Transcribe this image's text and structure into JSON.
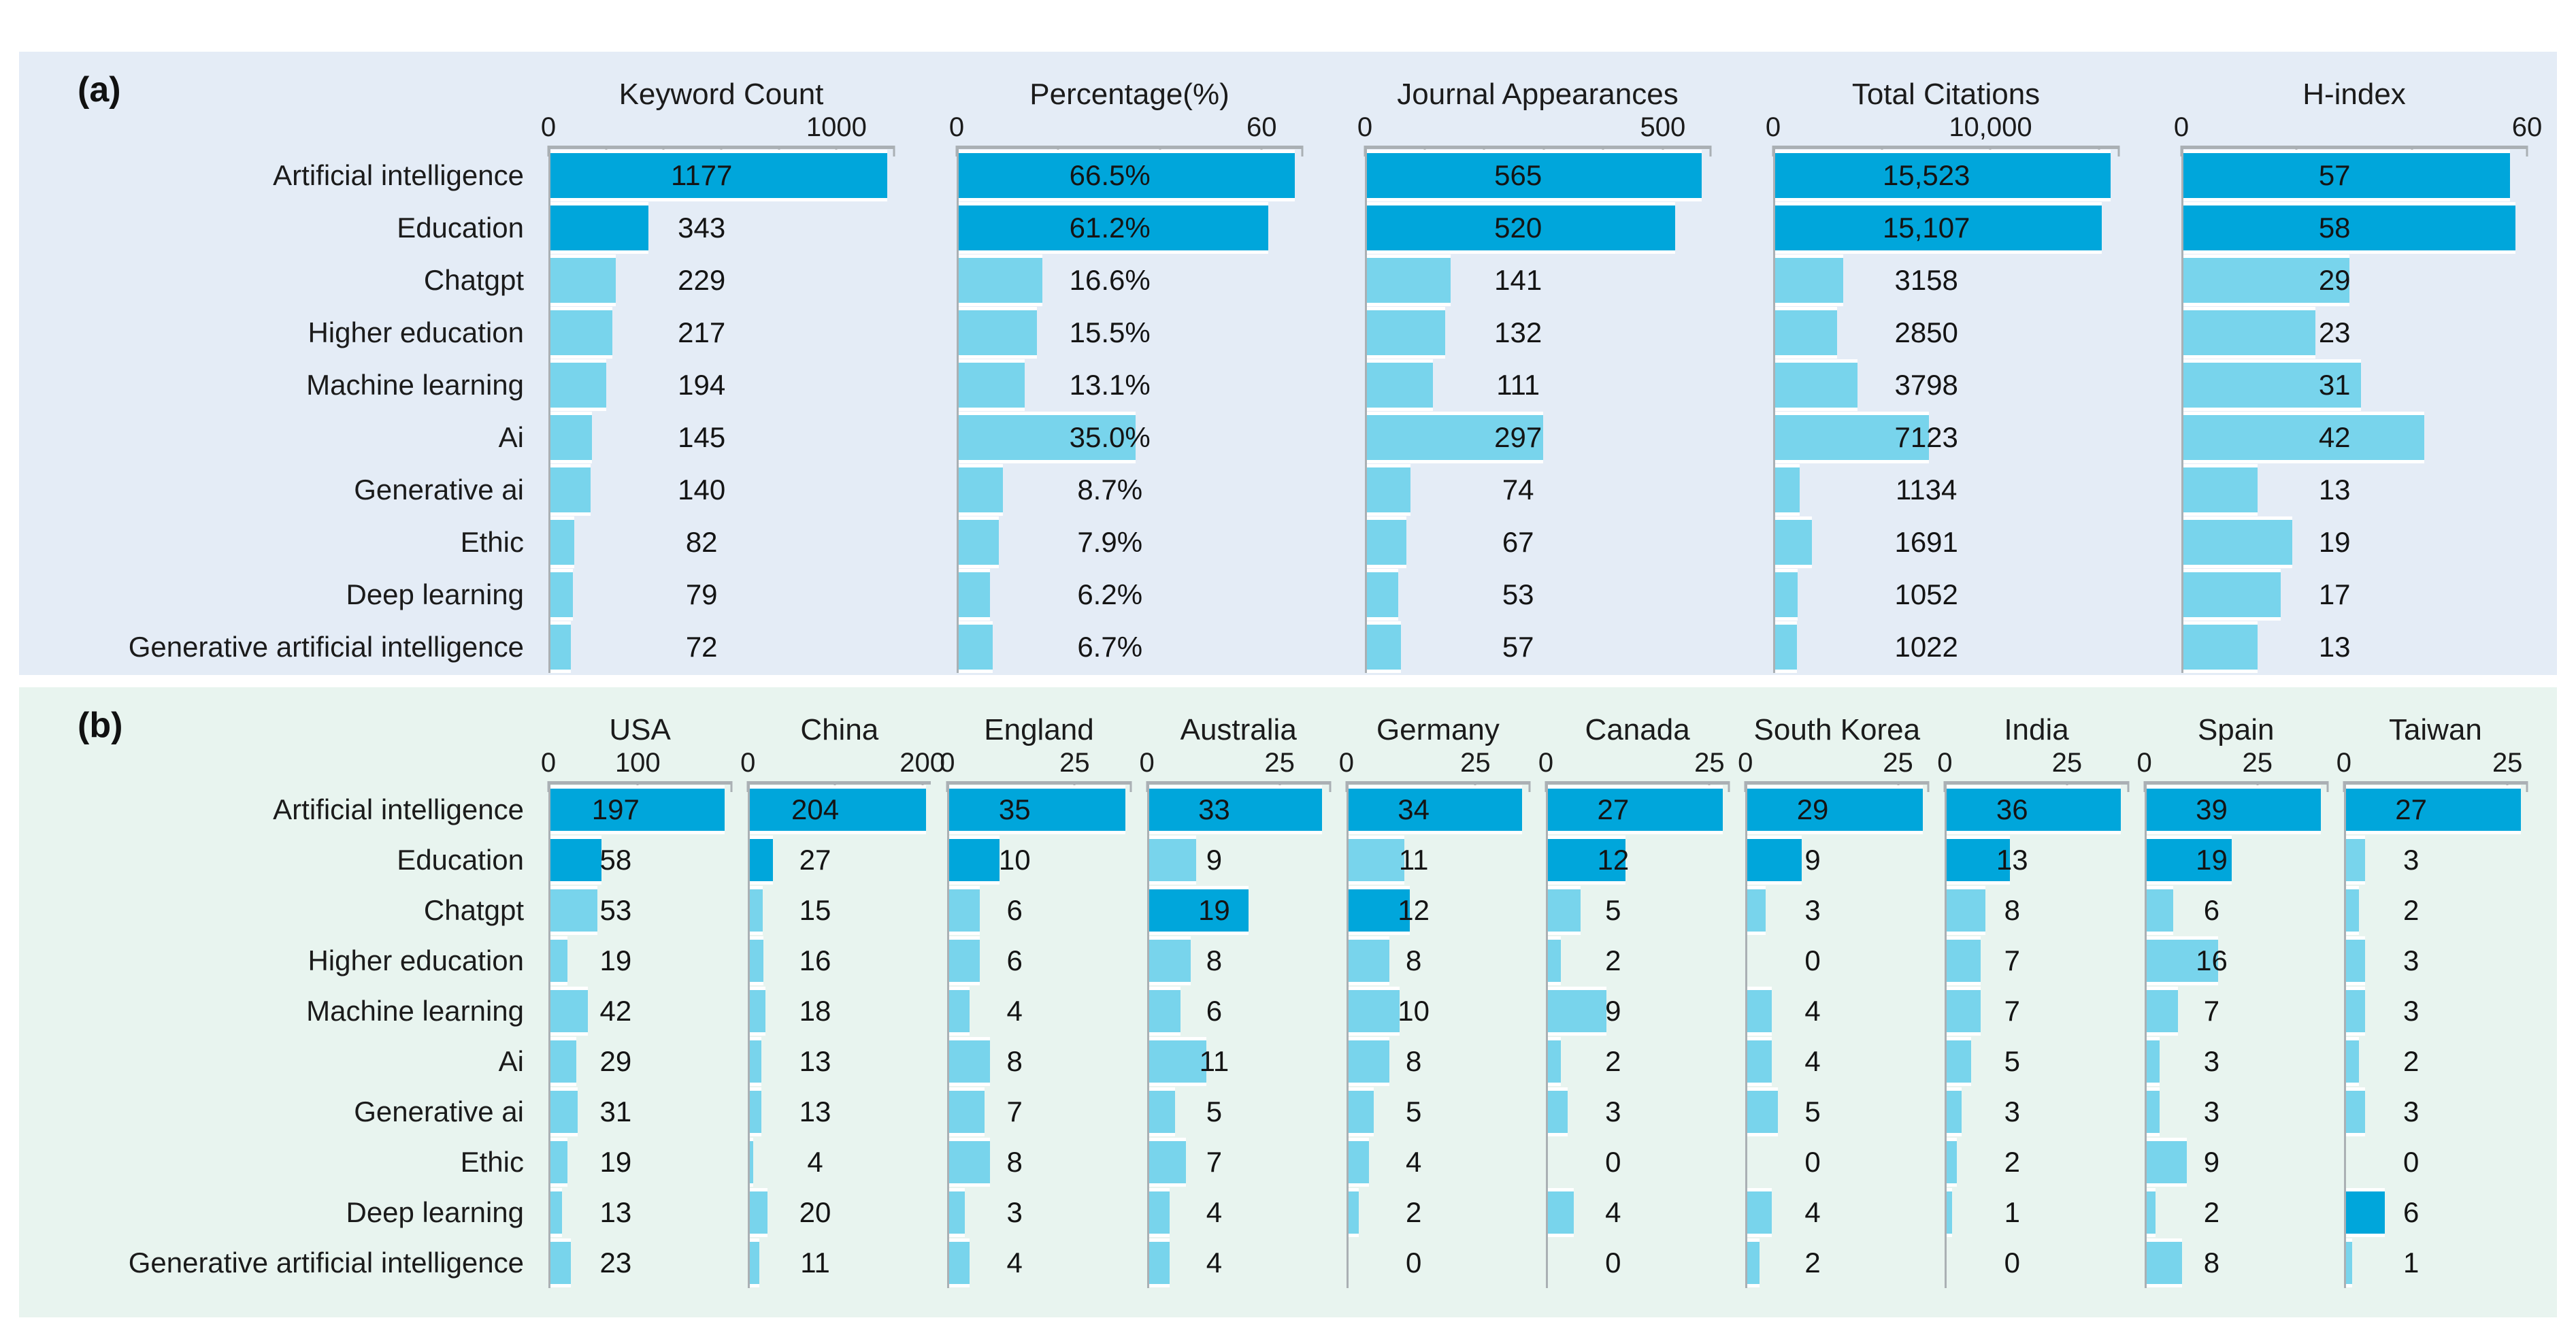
{
  "categories": [
    "Artificial intelligence",
    "Education",
    "Chatgpt",
    "Higher education",
    "Machine learning",
    "Ai",
    "Generative ai",
    "Ethic",
    "Deep learning",
    "Generative artificial intelligence"
  ],
  "chart_data": [
    {
      "id": "a",
      "panel_label": "(a)",
      "type": "bar",
      "orientation": "horizontal",
      "legend_position": "none",
      "grid": false,
      "colors": {
        "bar_dark": "#00a6db",
        "bar_light": "#78d4ec",
        "background": "#e4ecf6",
        "axis": "#aab0b4"
      },
      "columns": [
        {
          "title": "Keyword Count",
          "axis_max": 1200,
          "ticks": [
            {
              "v": 0,
              "label": "0"
            },
            {
              "v": 200
            },
            {
              "v": 400
            },
            {
              "v": 600
            },
            {
              "v": 800
            },
            {
              "v": 1000,
              "label": "1000"
            },
            {
              "v": 1200
            }
          ],
          "values": [
            1177,
            343,
            229,
            217,
            194,
            145,
            140,
            82,
            79,
            72
          ],
          "value_labels": [
            "1177",
            "343",
            "229",
            "217",
            "194",
            "145",
            "140",
            "82",
            "79",
            "72"
          ],
          "dark_rows": [
            0,
            1
          ]
        },
        {
          "title": "Percentage(%)",
          "axis_max": 68,
          "ticks": [
            {
              "v": 0,
              "label": "0"
            },
            {
              "v": 20
            },
            {
              "v": 40
            },
            {
              "v": 60,
              "label": "60"
            },
            {
              "v": 68
            }
          ],
          "values": [
            66.5,
            61.2,
            16.6,
            15.5,
            13.1,
            35.0,
            8.7,
            7.9,
            6.2,
            6.7
          ],
          "value_labels": [
            "66.5%",
            "61.2%",
            "16.6%",
            "15.5%",
            "13.1%",
            "35.0%",
            "8.7%",
            "7.9%",
            "6.2%",
            "6.7%"
          ],
          "dark_rows": [
            0,
            1
          ]
        },
        {
          "title": "Journal Appearances",
          "axis_max": 580,
          "ticks": [
            {
              "v": 0,
              "label": "0"
            },
            {
              "v": 100
            },
            {
              "v": 200
            },
            {
              "v": 300
            },
            {
              "v": 400
            },
            {
              "v": 500,
              "label": "500"
            },
            {
              "v": 580
            }
          ],
          "values": [
            565,
            520,
            141,
            132,
            111,
            297,
            74,
            67,
            53,
            57
          ],
          "value_labels": [
            "565",
            "520",
            "141",
            "132",
            "111",
            "297",
            "74",
            "67",
            "53",
            "57"
          ],
          "dark_rows": [
            0,
            1
          ]
        },
        {
          "title": "Total Citations",
          "axis_max": 15900,
          "ticks": [
            {
              "v": 0,
              "label": "0"
            },
            {
              "v": 5000
            },
            {
              "v": 10000,
              "label": "10,000"
            },
            {
              "v": 15000
            },
            {
              "v": 15900
            }
          ],
          "values": [
            15523,
            15107,
            3158,
            2850,
            3798,
            7123,
            1134,
            1691,
            1052,
            1022
          ],
          "value_labels": [
            "15,523",
            "15,107",
            "3158",
            "2850",
            "3798",
            "7123",
            "1134",
            "1691",
            "1052",
            "1022"
          ],
          "dark_rows": [
            0,
            1
          ]
        },
        {
          "title": "H-index",
          "axis_max": 60,
          "ticks": [
            {
              "v": 0,
              "label": "0"
            },
            {
              "v": 20
            },
            {
              "v": 40
            },
            {
              "v": 60,
              "label": "60"
            }
          ],
          "values": [
            57,
            58,
            29,
            23,
            31,
            42,
            13,
            19,
            17,
            13
          ],
          "value_labels": [
            "57",
            "58",
            "29",
            "23",
            "31",
            "42",
            "13",
            "19",
            "17",
            "13"
          ],
          "dark_rows": [
            0,
            1
          ]
        }
      ]
    },
    {
      "id": "b",
      "panel_label": "(b)",
      "type": "bar",
      "orientation": "horizontal",
      "legend_position": "none",
      "grid": false,
      "colors": {
        "bar_dark": "#00a6db",
        "bar_light": "#78d4ec",
        "background": "#e8f4ef",
        "axis": "#aab0b4"
      },
      "columns": [
        {
          "title": "USA",
          "axis_max": 205,
          "ticks": [
            {
              "v": 0,
              "label": "0"
            },
            {
              "v": 100,
              "label": "100"
            },
            {
              "v": 205
            }
          ],
          "values": [
            197,
            58,
            53,
            19,
            42,
            29,
            31,
            19,
            13,
            23
          ],
          "value_labels": [
            "197",
            "58",
            "53",
            "19",
            "42",
            "29",
            "31",
            "19",
            "13",
            "23"
          ],
          "dark_rows": [
            0,
            1
          ]
        },
        {
          "title": "China",
          "axis_max": 210,
          "ticks": [
            {
              "v": 0,
              "label": "0"
            },
            {
              "v": 100
            },
            {
              "v": 200,
              "label": "200"
            }
          ],
          "values": [
            204,
            27,
            15,
            16,
            18,
            13,
            13,
            4,
            20,
            11
          ],
          "value_labels": [
            "204",
            "27",
            "15",
            "16",
            "18",
            "13",
            "13",
            "4",
            "20",
            "11"
          ],
          "dark_rows": [
            0,
            1
          ]
        },
        {
          "title": "England",
          "axis_max": 36,
          "ticks": [
            {
              "v": 0,
              "label": "0"
            },
            {
              "v": 25,
              "label": "25"
            },
            {
              "v": 36
            }
          ],
          "values": [
            35,
            10,
            6,
            6,
            4,
            8,
            7,
            8,
            3,
            4
          ],
          "value_labels": [
            "35",
            "10",
            "6",
            "6",
            "4",
            "8",
            "7",
            "8",
            "3",
            "4"
          ],
          "dark_rows": [
            0,
            1
          ]
        },
        {
          "title": "Australia",
          "axis_max": 34.5,
          "ticks": [
            {
              "v": 0,
              "label": "0"
            },
            {
              "v": 25,
              "label": "25"
            },
            {
              "v": 34.5
            }
          ],
          "values": [
            33,
            9,
            19,
            8,
            6,
            11,
            5,
            7,
            4,
            4
          ],
          "value_labels": [
            "33",
            "9",
            "19",
            "8",
            "6",
            "11",
            "5",
            "7",
            "4",
            "4"
          ],
          "dark_rows": [
            0,
            2
          ]
        },
        {
          "title": "Germany",
          "axis_max": 35.5,
          "ticks": [
            {
              "v": 0,
              "label": "0"
            },
            {
              "v": 25,
              "label": "25"
            },
            {
              "v": 35.5
            }
          ],
          "values": [
            34,
            11,
            12,
            8,
            10,
            8,
            5,
            4,
            2,
            0
          ],
          "value_labels": [
            "34",
            "11",
            "12",
            "8",
            "10",
            "8",
            "5",
            "4",
            "2",
            "0"
          ],
          "dark_rows": [
            0,
            2
          ]
        },
        {
          "title": "Canada",
          "axis_max": 28,
          "ticks": [
            {
              "v": 0,
              "label": "0"
            },
            {
              "v": 25,
              "label": "25"
            },
            {
              "v": 28
            }
          ],
          "values": [
            27,
            12,
            5,
            2,
            9,
            2,
            3,
            0,
            4,
            0
          ],
          "value_labels": [
            "27",
            "12",
            "5",
            "2",
            "9",
            "2",
            "3",
            "0",
            "4",
            "0"
          ],
          "dark_rows": [
            0,
            1
          ]
        },
        {
          "title": "South Korea",
          "axis_max": 30,
          "ticks": [
            {
              "v": 0,
              "label": "0"
            },
            {
              "v": 25,
              "label": "25"
            },
            {
              "v": 30
            }
          ],
          "values": [
            29,
            9,
            3,
            0,
            4,
            4,
            5,
            0,
            4,
            2
          ],
          "value_labels": [
            "29",
            "9",
            "3",
            "0",
            "4",
            "4",
            "5",
            "0",
            "4",
            "2"
          ],
          "dark_rows": [
            0,
            1
          ]
        },
        {
          "title": "India",
          "axis_max": 37.5,
          "ticks": [
            {
              "v": 0,
              "label": "0"
            },
            {
              "v": 25,
              "label": "25"
            },
            {
              "v": 37.5
            }
          ],
          "values": [
            36,
            13,
            8,
            7,
            7,
            5,
            3,
            2,
            1,
            0
          ],
          "value_labels": [
            "36",
            "13",
            "8",
            "7",
            "7",
            "5",
            "3",
            "2",
            "1",
            "0"
          ],
          "dark_rows": [
            0,
            1
          ]
        },
        {
          "title": "Spain",
          "axis_max": 40.5,
          "ticks": [
            {
              "v": 0,
              "label": "0"
            },
            {
              "v": 25,
              "label": "25"
            },
            {
              "v": 40.5
            }
          ],
          "values": [
            39,
            19,
            6,
            16,
            7,
            3,
            3,
            9,
            2,
            8
          ],
          "value_labels": [
            "39",
            "19",
            "6",
            "16",
            "7",
            "3",
            "3",
            "9",
            "2",
            "8"
          ],
          "dark_rows": [
            0,
            1
          ]
        },
        {
          "title": "Taiwan",
          "axis_max": 28,
          "ticks": [
            {
              "v": 0,
              "label": "0"
            },
            {
              "v": 25,
              "label": "25"
            },
            {
              "v": 28
            }
          ],
          "values": [
            27,
            3,
            2,
            3,
            3,
            2,
            3,
            0,
            6,
            1
          ],
          "value_labels": [
            "27",
            "3",
            "2",
            "3",
            "3",
            "2",
            "3",
            "0",
            "6",
            "1"
          ],
          "dark_rows": [
            0,
            8
          ]
        }
      ]
    }
  ]
}
